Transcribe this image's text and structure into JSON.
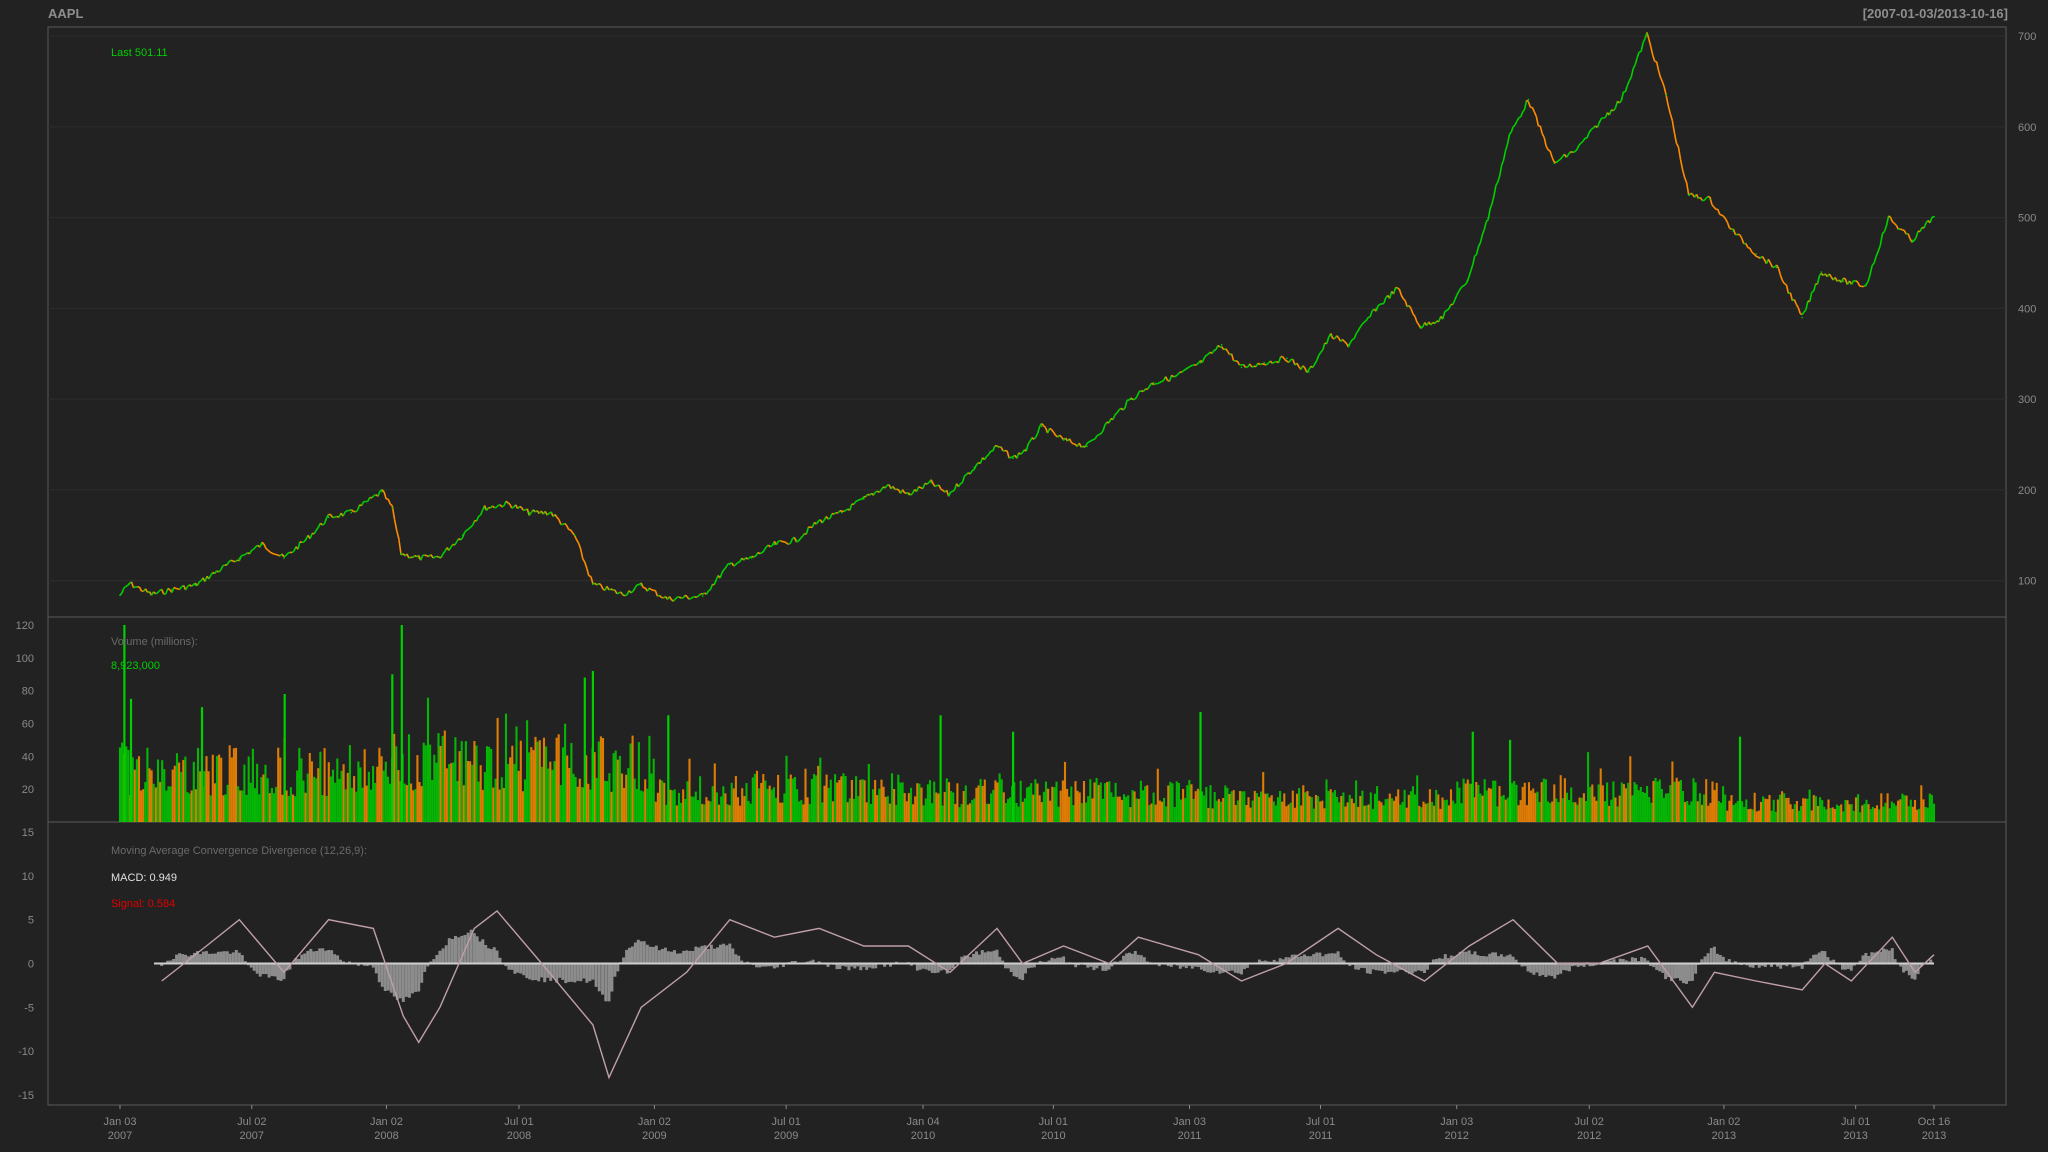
{
  "header": {
    "symbol": "AAPL",
    "range": "[2007-01-03/2013-10-16]"
  },
  "colors": {
    "background": "#222222",
    "frame": "#5a5a5a",
    "grid": "#2e2e2e",
    "tick_text": "#8a8a8a",
    "up": "#00d000",
    "down": "#ff8c00",
    "macd_line": "#c0a0a8",
    "macd_hist": "#8c8c8c"
  },
  "chart_data": [
    {
      "type": "line",
      "name": "price",
      "label_prefix": "Last",
      "label_value": "501.11",
      "ylim": [
        60,
        710
      ],
      "y_ticks": [
        100,
        200,
        300,
        400,
        500,
        600,
        700
      ],
      "x_start": "2007-01-03",
      "x_end": "2013-10-16",
      "points": [
        [
          "2007-01-03",
          84
        ],
        [
          "2007-01-16",
          97
        ],
        [
          "2007-02-15",
          85
        ],
        [
          "2007-03-15",
          90
        ],
        [
          "2007-04-16",
          95
        ],
        [
          "2007-05-15",
          110
        ],
        [
          "2007-06-15",
          125
        ],
        [
          "2007-07-16",
          140
        ],
        [
          "2007-08-15",
          125
        ],
        [
          "2007-09-14",
          145
        ],
        [
          "2007-10-15",
          170
        ],
        [
          "2007-11-15",
          175
        ],
        [
          "2007-12-27",
          198
        ],
        [
          "2008-01-10",
          180
        ],
        [
          "2008-01-22",
          130
        ],
        [
          "2008-02-15",
          125
        ],
        [
          "2008-03-14",
          126
        ],
        [
          "2008-04-15",
          150
        ],
        [
          "2008-05-15",
          180
        ],
        [
          "2008-06-16",
          185
        ],
        [
          "2008-07-15",
          175
        ],
        [
          "2008-08-14",
          175
        ],
        [
          "2008-09-15",
          150
        ],
        [
          "2008-10-10",
          96
        ],
        [
          "2008-11-20",
          85
        ],
        [
          "2008-12-15",
          95
        ],
        [
          "2009-01-20",
          80
        ],
        [
          "2009-03-09",
          83
        ],
        [
          "2009-04-15",
          118
        ],
        [
          "2009-05-15",
          125
        ],
        [
          "2009-06-15",
          140
        ],
        [
          "2009-07-15",
          145
        ],
        [
          "2009-08-14",
          165
        ],
        [
          "2009-09-15",
          175
        ],
        [
          "2009-10-15",
          190
        ],
        [
          "2009-11-16",
          205
        ],
        [
          "2009-12-15",
          195
        ],
        [
          "2010-01-15",
          208
        ],
        [
          "2010-02-08",
          195
        ],
        [
          "2010-03-15",
          225
        ],
        [
          "2010-04-15",
          248
        ],
        [
          "2010-05-07",
          235
        ],
        [
          "2010-05-25",
          245
        ],
        [
          "2010-06-15",
          270
        ],
        [
          "2010-07-15",
          255
        ],
        [
          "2010-08-16",
          248
        ],
        [
          "2010-09-15",
          275
        ],
        [
          "2010-10-15",
          300
        ],
        [
          "2010-11-15",
          318
        ],
        [
          "2010-12-15",
          325
        ],
        [
          "2011-01-18",
          340
        ],
        [
          "2011-02-16",
          360
        ],
        [
          "2011-03-15",
          335
        ],
        [
          "2011-04-15",
          340
        ],
        [
          "2011-05-16",
          345
        ],
        [
          "2011-06-15",
          330
        ],
        [
          "2011-07-15",
          370
        ],
        [
          "2011-08-08",
          360
        ],
        [
          "2011-09-15",
          400
        ],
        [
          "2011-10-14",
          422
        ],
        [
          "2011-11-15",
          380
        ],
        [
          "2011-12-15",
          390
        ],
        [
          "2012-01-17",
          430
        ],
        [
          "2012-02-15",
          500
        ],
        [
          "2012-03-15",
          590
        ],
        [
          "2012-04-10",
          630
        ],
        [
          "2012-05-15",
          560
        ],
        [
          "2012-06-15",
          575
        ],
        [
          "2012-07-16",
          605
        ],
        [
          "2012-08-15",
          630
        ],
        [
          "2012-09-19",
          702
        ],
        [
          "2012-10-15",
          635
        ],
        [
          "2012-11-15",
          525
        ],
        [
          "2012-12-14",
          520
        ],
        [
          "2013-01-15",
          485
        ],
        [
          "2013-02-15",
          460
        ],
        [
          "2013-03-15",
          445
        ],
        [
          "2013-04-19",
          390
        ],
        [
          "2013-05-15",
          440
        ],
        [
          "2013-06-14",
          430
        ],
        [
          "2013-07-15",
          425
        ],
        [
          "2013-08-15",
          500
        ],
        [
          "2013-09-16",
          475
        ],
        [
          "2013-10-16",
          501
        ]
      ]
    },
    {
      "type": "bar",
      "name": "volume",
      "label": "Volume (millions):",
      "label_value": "8,923,000",
      "ylim": [
        0,
        120
      ],
      "y_ticks": [
        20,
        40,
        60,
        80,
        100,
        120
      ],
      "baseline_by_year": [
        [
          "2007",
          35
        ],
        [
          "2008",
          40
        ],
        [
          "2009",
          22
        ],
        [
          "2010",
          20
        ],
        [
          "2011",
          17
        ],
        [
          "2012",
          20
        ],
        [
          "2013",
          13
        ]
      ],
      "spikes": [
        [
          "2007-01-09",
          120
        ],
        [
          "2007-01-18",
          75
        ],
        [
          "2007-04-25",
          70
        ],
        [
          "2007-08-16",
          78
        ],
        [
          "2008-01-23",
          120
        ],
        [
          "2008-01-10",
          90
        ],
        [
          "2008-10-10",
          92
        ],
        [
          "2008-09-29",
          88
        ],
        [
          "2009-01-21",
          65
        ],
        [
          "2010-01-28",
          65
        ],
        [
          "2010-05-07",
          55
        ],
        [
          "2011-01-18",
          67
        ],
        [
          "2012-01-25",
          55
        ],
        [
          "2012-03-16",
          50
        ],
        [
          "2013-01-24",
          52
        ]
      ]
    },
    {
      "type": "line",
      "name": "macd",
      "label": "Moving Average Convergence Divergence (12,26,9):",
      "macd_label": "MACD:",
      "macd_value": "0.949",
      "signal_label": "Signal:",
      "signal_value": "0.584",
      "ylim": [
        -15,
        15
      ],
      "y_ticks": [
        15,
        10,
        5,
        0,
        -5,
        -10,
        -15
      ],
      "points": [
        [
          "2007-03-01",
          -2
        ],
        [
          "2007-05-01",
          2
        ],
        [
          "2007-06-15",
          5
        ],
        [
          "2007-08-15",
          -1
        ],
        [
          "2007-10-15",
          5
        ],
        [
          "2007-12-15",
          4
        ],
        [
          "2008-01-25",
          -6
        ],
        [
          "2008-02-15",
          -9
        ],
        [
          "2008-03-15",
          -5
        ],
        [
          "2008-05-01",
          4
        ],
        [
          "2008-06-01",
          6
        ],
        [
          "2008-08-01",
          0
        ],
        [
          "2008-10-10",
          -7
        ],
        [
          "2008-11-01",
          -13
        ],
        [
          "2008-12-15",
          -5
        ],
        [
          "2009-02-15",
          -1
        ],
        [
          "2009-04-15",
          5
        ],
        [
          "2009-06-15",
          3
        ],
        [
          "2009-08-15",
          4
        ],
        [
          "2009-10-15",
          2
        ],
        [
          "2009-12-15",
          2
        ],
        [
          "2010-02-10",
          -1
        ],
        [
          "2010-04-15",
          4
        ],
        [
          "2010-05-20",
          0
        ],
        [
          "2010-07-15",
          2
        ],
        [
          "2010-09-15",
          0
        ],
        [
          "2010-10-25",
          3
        ],
        [
          "2011-01-15",
          1
        ],
        [
          "2011-03-15",
          -2
        ],
        [
          "2011-05-15",
          0
        ],
        [
          "2011-07-25",
          4
        ],
        [
          "2011-09-15",
          1
        ],
        [
          "2011-11-20",
          -2
        ],
        [
          "2012-01-20",
          2
        ],
        [
          "2012-03-20",
          5
        ],
        [
          "2012-05-20",
          0
        ],
        [
          "2012-07-15",
          0
        ],
        [
          "2012-09-20",
          2
        ],
        [
          "2012-11-20",
          -5
        ],
        [
          "2012-12-20",
          -1
        ],
        [
          "2013-02-15",
          -2
        ],
        [
          "2013-04-19",
          -3
        ],
        [
          "2013-05-20",
          0
        ],
        [
          "2013-06-25",
          -2
        ],
        [
          "2013-08-20",
          3
        ],
        [
          "2013-09-20",
          -1
        ],
        [
          "2013-10-16",
          1
        ]
      ]
    }
  ],
  "x_axis": {
    "ticks": [
      {
        "date": "2007-01-03",
        "line1": "Jan 03",
        "line2": "2007"
      },
      {
        "date": "2007-07-02",
        "line1": "Jul 02",
        "line2": "2007"
      },
      {
        "date": "2008-01-02",
        "line1": "Jan 02",
        "line2": "2008"
      },
      {
        "date": "2008-07-01",
        "line1": "Jul 01",
        "line2": "2008"
      },
      {
        "date": "2009-01-02",
        "line1": "Jan 02",
        "line2": "2009"
      },
      {
        "date": "2009-07-01",
        "line1": "Jul 01",
        "line2": "2009"
      },
      {
        "date": "2010-01-04",
        "line1": "Jan 04",
        "line2": "2010"
      },
      {
        "date": "2010-07-01",
        "line1": "Jul 01",
        "line2": "2010"
      },
      {
        "date": "2011-01-03",
        "line1": "Jan 03",
        "line2": "2011"
      },
      {
        "date": "2011-07-01",
        "line1": "Jul 01",
        "line2": "2011"
      },
      {
        "date": "2012-01-03",
        "line1": "Jan 03",
        "line2": "2012"
      },
      {
        "date": "2012-07-02",
        "line1": "Jul 02",
        "line2": "2012"
      },
      {
        "date": "2013-01-02",
        "line1": "Jan 02",
        "line2": "2013"
      },
      {
        "date": "2013-07-01",
        "line1": "Jul 01",
        "line2": "2013"
      },
      {
        "date": "2013-10-16",
        "line1": "Oct 16",
        "line2": "2013"
      }
    ]
  }
}
